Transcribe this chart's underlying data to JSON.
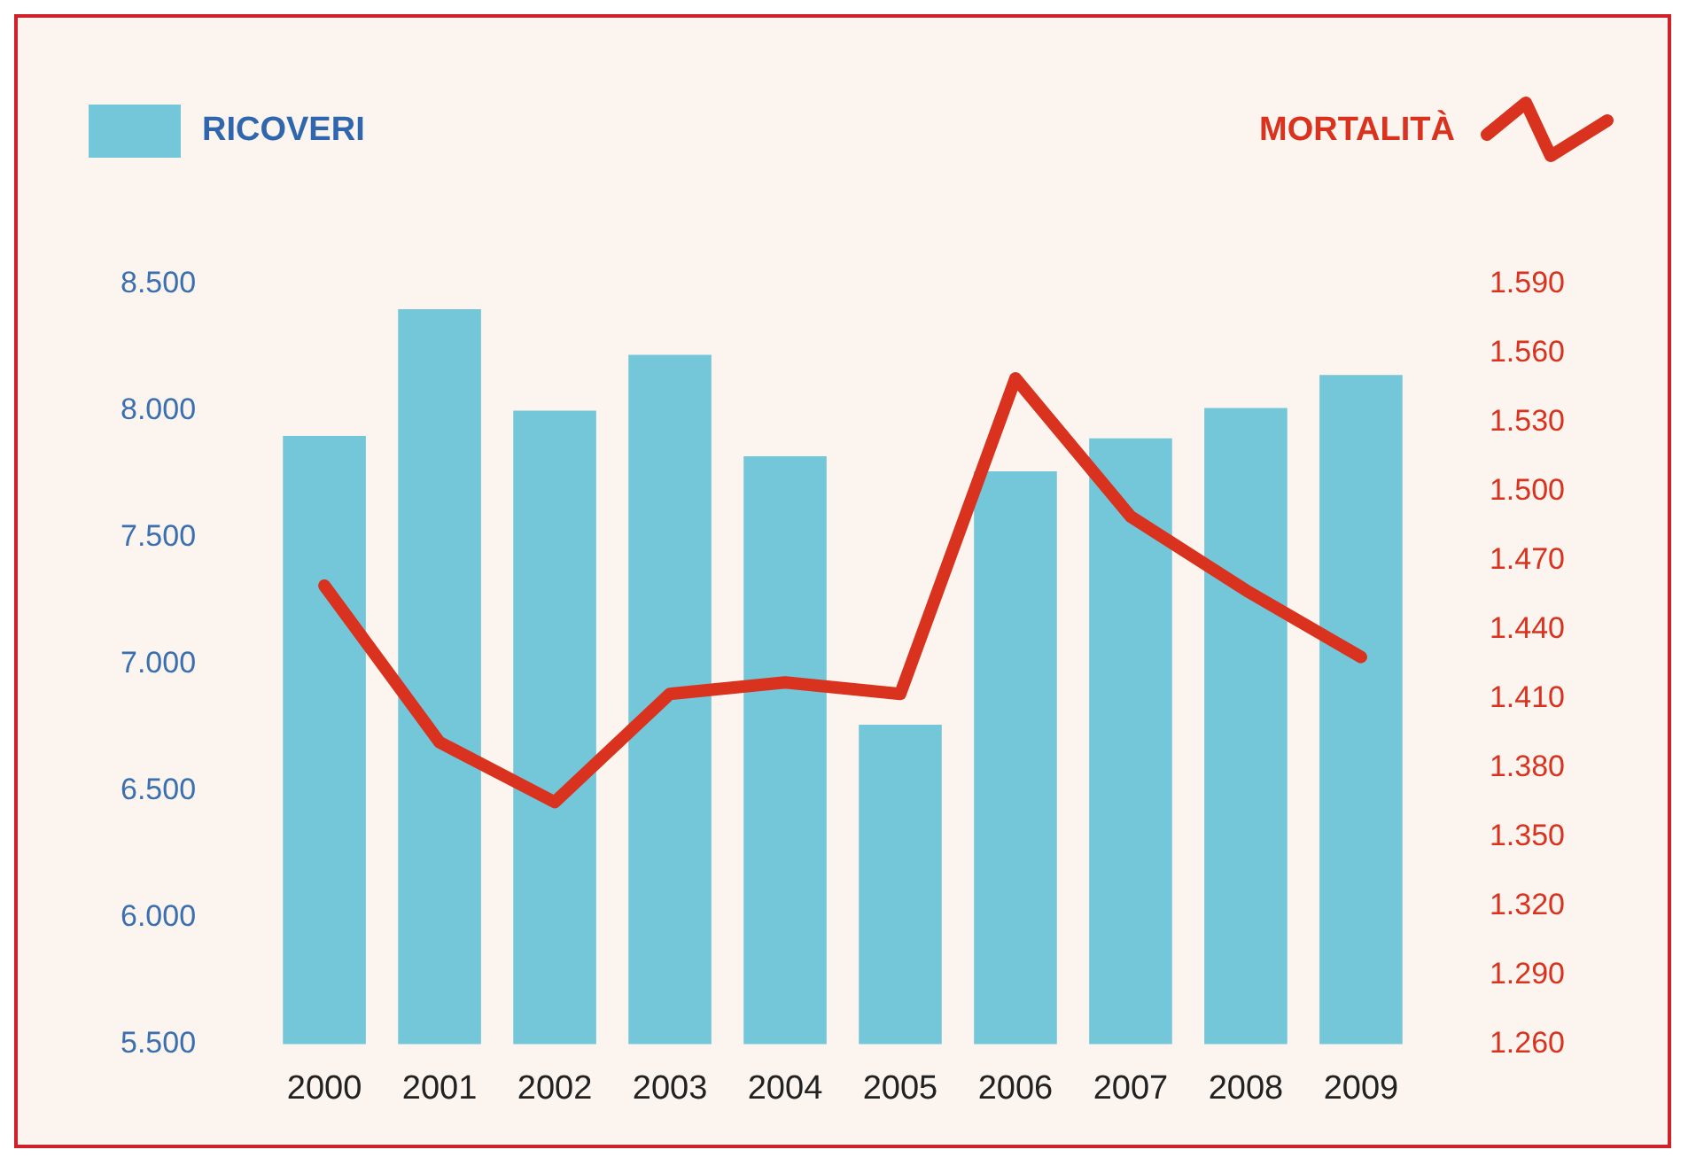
{
  "chart_data": {
    "type": "bar",
    "categories": [
      "2000",
      "2001",
      "2002",
      "2003",
      "2004",
      "2005",
      "2006",
      "2007",
      "2008",
      "2009"
    ],
    "series": [
      {
        "name": "RICOVERI",
        "color": "#74c6d9",
        "values": [
          7900,
          8400,
          8000,
          8220,
          7820,
          6760,
          7760,
          7890,
          8010,
          8140
        ]
      },
      {
        "name": "MORTALITÀ",
        "type": "line",
        "axis": "y2",
        "color": "#d9321e",
        "values": [
          1459,
          1391,
          1365,
          1412,
          1417,
          1412,
          1549,
          1489,
          1457,
          1428
        ]
      }
    ],
    "ylim": [
      5500,
      8500
    ],
    "yticks": [
      {
        "value": 5500,
        "label": "5.500"
      },
      {
        "value": 6000,
        "label": "6.000"
      },
      {
        "value": 6500,
        "label": "6.500"
      },
      {
        "value": 7000,
        "label": "7.000"
      },
      {
        "value": 7500,
        "label": "7.500"
      },
      {
        "value": 8000,
        "label": "8.000"
      },
      {
        "value": 8500,
        "label": "8.500"
      }
    ],
    "y2lim": [
      1260,
      1590
    ],
    "y2ticks": [
      {
        "value": 1260,
        "label": "1.260"
      },
      {
        "value": 1290,
        "label": "1.290"
      },
      {
        "value": 1320,
        "label": "1.320"
      },
      {
        "value": 1350,
        "label": "1.350"
      },
      {
        "value": 1380,
        "label": "1.380"
      },
      {
        "value": 1410,
        "label": "1.410"
      },
      {
        "value": 1440,
        "label": "1.440"
      },
      {
        "value": 1470,
        "label": "1.470"
      },
      {
        "value": 1500,
        "label": "1.500"
      },
      {
        "value": 1530,
        "label": "1.530"
      },
      {
        "value": 1560,
        "label": "1.560"
      },
      {
        "value": 1590,
        "label": "1.590"
      }
    ],
    "grid": false,
    "legend": "top",
    "marker": "none"
  }
}
